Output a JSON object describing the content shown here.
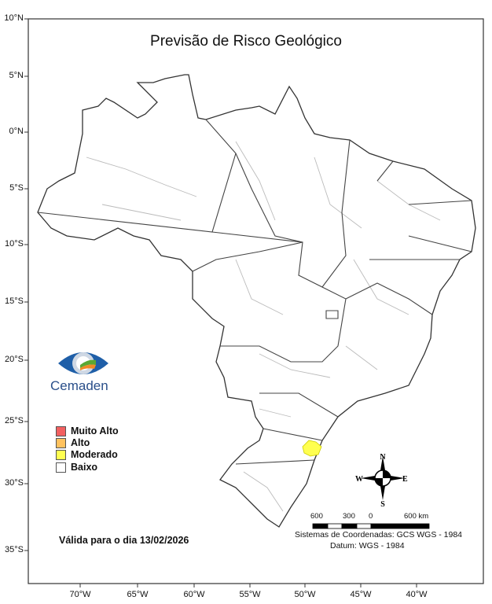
{
  "title": "Previsão de Risco Geológico",
  "lat_ticks": [
    "10°N",
    "5°N",
    "0°N",
    "5°S",
    "10°S",
    "15°S",
    "20°S",
    "25°S",
    "30°S",
    "35°S"
  ],
  "lon_ticks": [
    "70°W",
    "65°W",
    "60°W",
    "55°W",
    "50°W",
    "45°W",
    "40°W"
  ],
  "logo": {
    "text": "Cemaden"
  },
  "legend": [
    {
      "label": "Muito Alto",
      "color": "#f26060"
    },
    {
      "label": "Alto",
      "color": "#ffc25e"
    },
    {
      "label": "Moderado",
      "color": "#ffff50"
    },
    {
      "label": "Baixo",
      "color": "#ffffff"
    }
  ],
  "valid_text": "Válida para o dia 13/02/2026",
  "compass": {
    "n": "N",
    "s": "S",
    "e": "E",
    "w": "W"
  },
  "scale": {
    "labels": [
      "600",
      "300",
      "0",
      "600 km"
    ]
  },
  "coord_system": "Sistemas de Coordenadas: GCS WGS - 1984",
  "datum": "Datum: WGS - 1984",
  "risk_areas": [
    {
      "level": "Moderado",
      "color": "#ffff50"
    }
  ]
}
